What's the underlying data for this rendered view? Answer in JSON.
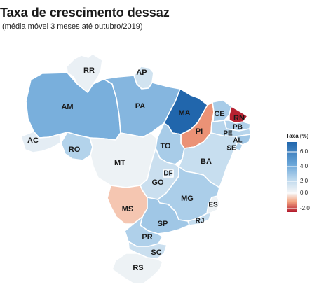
{
  "title": "Taxa de crescimento dessaz",
  "subtitle": "(média móvel 3 meses até outubro/2019)",
  "legend": {
    "title": "Taxa (%)",
    "ticks": [
      "6.0",
      "4.0",
      "2.0",
      "0.0",
      "-2.0"
    ],
    "stops": [
      {
        "value": 7.0,
        "color": "#2166ac"
      },
      {
        "value": 4.0,
        "color": "#6aa6d8"
      },
      {
        "value": 2.0,
        "color": "#b7d5ec"
      },
      {
        "value": 0.0,
        "color": "#f7f7f7"
      },
      {
        "value": -1.0,
        "color": "#f4a582"
      },
      {
        "value": -2.5,
        "color": "#b2182b"
      }
    ]
  },
  "states": [
    {
      "sigla": "AC",
      "value": 0.6
    },
    {
      "sigla": "AM",
      "value": 3.6
    },
    {
      "sigla": "RR",
      "value": 0.4
    },
    {
      "sigla": "AP",
      "value": 1.2
    },
    {
      "sigla": "PA",
      "value": 3.3
    },
    {
      "sigla": "MA",
      "value": 7.0
    },
    {
      "sigla": "PI",
      "value": -1.2
    },
    {
      "sigla": "CE",
      "value": 2.4
    },
    {
      "sigla": "RN",
      "value": -2.4
    },
    {
      "sigla": "PB",
      "value": 2.2
    },
    {
      "sigla": "PE",
      "value": 2.0
    },
    {
      "sigla": "AL",
      "value": 2.6
    },
    {
      "sigla": "SE",
      "value": 2.1
    },
    {
      "sigla": "BA",
      "value": 1.5
    },
    {
      "sigla": "TO",
      "value": 2.4
    },
    {
      "sigla": "RO",
      "value": 2.1
    },
    {
      "sigla": "MT",
      "value": 0.3
    },
    {
      "sigla": "GO",
      "value": 1.4
    },
    {
      "sigla": "DF",
      "value": 1.2
    },
    {
      "sigla": "MS",
      "value": -0.6
    },
    {
      "sigla": "MG",
      "value": 2.3
    },
    {
      "sigla": "ES",
      "value": 0.3
    },
    {
      "sigla": "RJ",
      "value": 1.6
    },
    {
      "sigla": "SP",
      "value": 2.6
    },
    {
      "sigla": "PR",
      "value": 2.2
    },
    {
      "sigla": "SC",
      "value": 1.4
    },
    {
      "sigla": "RS",
      "value": 0.3
    }
  ]
}
